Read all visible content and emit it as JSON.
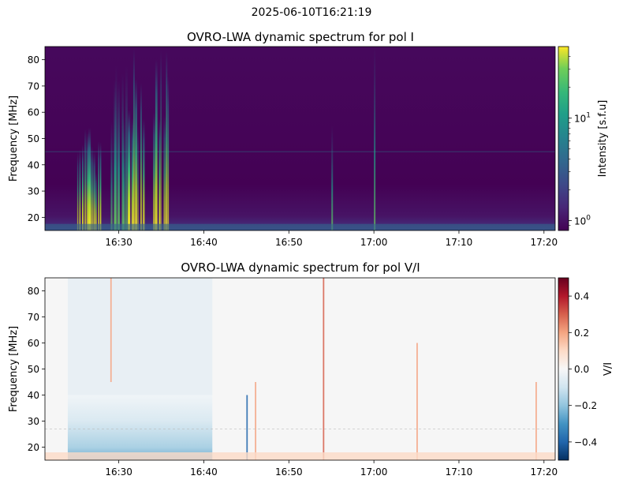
{
  "figure": {
    "suptitle": "2025-06-10T16:21:19"
  },
  "chart_data": [
    {
      "type": "heatmap",
      "title": "OVRO-LWA dynamic spectrum for pol I",
      "xlabel": "",
      "ylabel": "Frequency [MHz]",
      "x_range": [
        "16:21:19",
        "17:21:19"
      ],
      "x_ticks": [
        "16:30",
        "16:40",
        "16:50",
        "17:00",
        "17:10",
        "17:20"
      ],
      "ylim": [
        15,
        85
      ],
      "y_ticks": [
        20,
        30,
        40,
        50,
        60,
        70,
        80
      ],
      "colormap": "viridis",
      "colorbar": {
        "label": "Intensity [s.f.u]",
        "scale": "log",
        "range": [
          0.8,
          50
        ],
        "tick_labels": [
          "10^0",
          "10^1"
        ]
      },
      "features": [
        {
          "kind": "burst_group",
          "time_start": "16:25",
          "time_end": "16:28",
          "freq_min": 15,
          "freq_max": 55,
          "peak_intensity": 40
        },
        {
          "kind": "burst_group",
          "time_start": "16:29",
          "time_end": "16:31",
          "freq_min": 15,
          "freq_max": 85,
          "peak_intensity": 20
        },
        {
          "kind": "burst_group",
          "time_start": "16:31",
          "time_end": "16:33",
          "freq_min": 15,
          "freq_max": 85,
          "peak_intensity": 30
        },
        {
          "kind": "burst_group",
          "time_start": "16:34",
          "time_end": "16:36",
          "freq_min": 15,
          "freq_max": 85,
          "peak_intensity": 50
        },
        {
          "kind": "isolated_burst",
          "time": "16:55",
          "freq_min": 15,
          "freq_max": 55,
          "peak_intensity": 3
        },
        {
          "kind": "isolated_burst",
          "time": "17:00",
          "freq_min": 15,
          "freq_max": 85,
          "peak_intensity": 5
        }
      ]
    },
    {
      "type": "heatmap",
      "title": "OVRO-LWA dynamic spectrum for pol V/I",
      "xlabel": "",
      "ylabel": "Frequency [MHz]",
      "x_range": [
        "16:21:19",
        "17:21:19"
      ],
      "x_ticks": [
        "16:30",
        "16:40",
        "16:50",
        "17:00",
        "17:10",
        "17:20"
      ],
      "ylim": [
        15,
        85
      ],
      "y_ticks": [
        20,
        30,
        40,
        50,
        60,
        70,
        80
      ],
      "colormap": "RdBu_r",
      "colorbar": {
        "label": "V/I",
        "scale": "linear",
        "range": [
          -0.5,
          0.5
        ],
        "tick_labels": [
          "−0.4",
          "−0.2",
          "0.0",
          "0.2",
          "0.4"
        ]
      },
      "features": [
        {
          "kind": "negative_region",
          "time_start": "16:24",
          "time_end": "16:41",
          "freq_min": 15,
          "freq_max": 40,
          "value": -0.3
        },
        {
          "kind": "positive_line",
          "time": "16:29",
          "freq_min": 45,
          "freq_max": 85,
          "value": 0.2
        },
        {
          "kind": "positive_line",
          "time": "16:46",
          "freq_min": 15,
          "freq_max": 45,
          "value": 0.3
        },
        {
          "kind": "negative_line",
          "time": "16:45",
          "freq_min": 15,
          "freq_max": 40,
          "value": -0.4
        },
        {
          "kind": "positive_line",
          "time": "16:54",
          "freq_min": 15,
          "freq_max": 85,
          "value": 0.4
        },
        {
          "kind": "positive_line",
          "time": "17:05",
          "freq_min": 15,
          "freq_max": 60,
          "value": 0.3
        },
        {
          "kind": "positive_line",
          "time": "17:19",
          "freq_min": 15,
          "freq_max": 45,
          "value": 0.3
        }
      ]
    }
  ]
}
